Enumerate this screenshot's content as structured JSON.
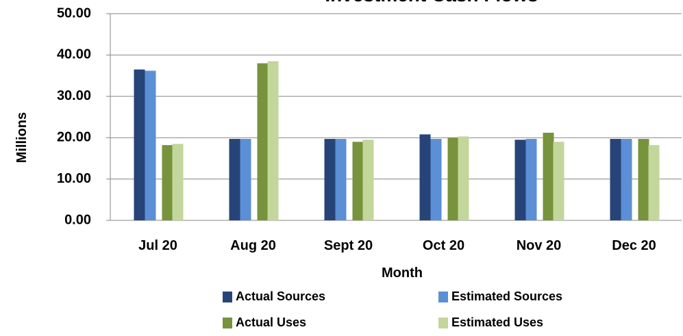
{
  "chart_data": {
    "type": "bar",
    "title": "Investment Cash Flows",
    "x_label": "Month",
    "y_label": "Millions",
    "categories": [
      "Jul 20",
      "Aug 20",
      "Sept 20",
      "Oct 20",
      "Nov 20",
      "Dec 20"
    ],
    "series": [
      {
        "name": "Actual Sources",
        "color": "#264478",
        "values": [
          36.5,
          19.7,
          19.7,
          20.8,
          19.5,
          19.7
        ]
      },
      {
        "name": "Estimated Sources",
        "color": "#5b8fd6",
        "values": [
          36.2,
          19.7,
          19.7,
          19.7,
          19.7,
          19.7
        ]
      },
      {
        "name": "Actual  Uses",
        "color": "#77933c",
        "values": [
          18.2,
          38.0,
          19.0,
          20.0,
          21.2,
          19.7
        ]
      },
      {
        "name": "Estimated Uses",
        "color": "#c3d69b",
        "values": [
          18.5,
          38.5,
          19.5,
          20.3,
          19.0,
          18.2
        ]
      }
    ],
    "ylim": [
      0,
      50
    ],
    "yticks": [
      {
        "value": 0,
        "label": "0.00"
      },
      {
        "value": 10,
        "label": "10.00"
      },
      {
        "value": 20,
        "label": "20.00"
      },
      {
        "value": 30,
        "label": "30.00"
      },
      {
        "value": 40,
        "label": "40.00"
      },
      {
        "value": 50,
        "label": "50.00"
      }
    ],
    "grid": true
  }
}
